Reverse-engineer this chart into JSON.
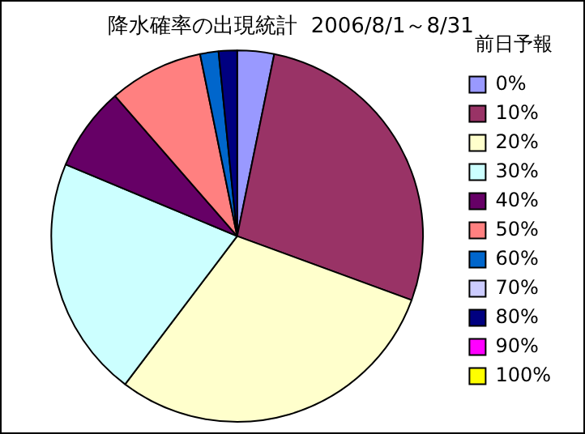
{
  "chart_data": {
    "type": "pie",
    "title": "降水確率の出現統計  2006/8/1～8/31",
    "legend_title": "前日予報",
    "legend": "right",
    "categories": [
      "0%",
      "10%",
      "20%",
      "30%",
      "40%",
      "50%",
      "60%",
      "70%",
      "80%",
      "90%",
      "100%"
    ],
    "values": [
      3.2,
      27.4,
      29.7,
      21,
      7.3,
      8.2,
      1.6,
      0,
      1.6,
      0,
      0
    ],
    "colors": [
      "#9999ff",
      "#993366",
      "#ffffcc",
      "#ccffff",
      "#660066",
      "#ff8080",
      "#0066cc",
      "#ccccff",
      "#000080",
      "#ff00ff",
      "#ffff00"
    ]
  }
}
